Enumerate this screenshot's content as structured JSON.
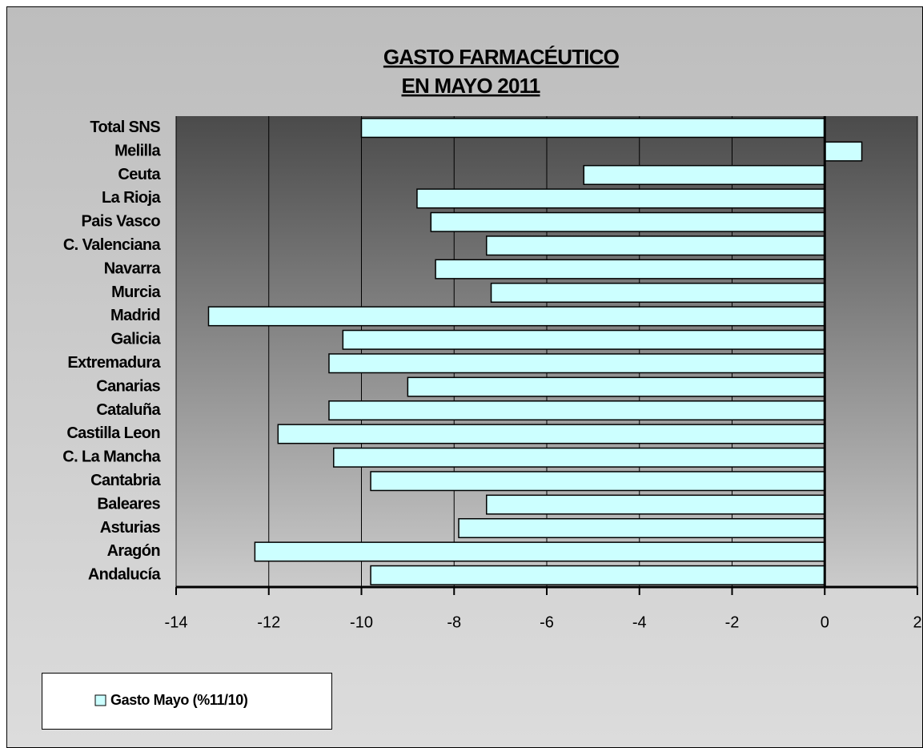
{
  "chart_data": {
    "type": "hbar",
    "title": [
      "GASTO FARMACÉUTICO",
      "EN MAYO 2011"
    ],
    "categories": [
      "Total SNS",
      "Melilla",
      "Ceuta",
      "La Rioja",
      "Pais Vasco",
      "C. Valenciana",
      "Navarra",
      "Murcia",
      "Madrid",
      "Galicia",
      "Extremadura",
      "Canarias",
      "Cataluña",
      "Castilla Leon",
      "C. La Mancha",
      "Cantabria",
      "Baleares",
      "Asturias",
      "Aragón",
      "Andalucía"
    ],
    "series": [
      {
        "name": "Gasto Mayo (%11/10)",
        "color": "#ccffff",
        "values": [
          -10.0,
          0.8,
          -5.2,
          -8.8,
          -8.5,
          -7.3,
          -8.4,
          -7.2,
          -13.3,
          -10.4,
          -10.7,
          -9.0,
          -10.7,
          -11.8,
          -10.6,
          -9.8,
          -7.3,
          -7.9,
          -12.3,
          -9.8
        ]
      }
    ],
    "xlim": [
      -14,
      2
    ],
    "xticks": [
      -14,
      -12,
      -10,
      -8,
      -6,
      -4,
      -2,
      0,
      2
    ],
    "grid": true,
    "legend": "bottom-left"
  }
}
